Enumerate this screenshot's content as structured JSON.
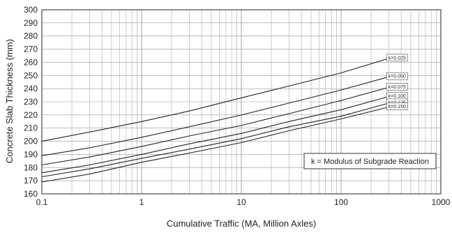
{
  "chart_data": {
    "type": "line",
    "title": "",
    "xlabel": "Cumulative Traffic (MA, Million Axles)",
    "ylabel": "Concrete Slab Thickness (mm)",
    "xscale": "log",
    "xlim": [
      0.1,
      1000
    ],
    "ylim": [
      160,
      300
    ],
    "xticks": [
      0.1,
      1,
      10,
      100,
      1000
    ],
    "xtick_labels": [
      "0.1",
      "1",
      "10",
      "100",
      "1000"
    ],
    "yticks": [
      160,
      170,
      180,
      190,
      200,
      210,
      220,
      230,
      240,
      250,
      260,
      270,
      280,
      290,
      300
    ],
    "ytick_labels": [
      "160",
      "170",
      "180",
      "190",
      "200",
      "210",
      "220",
      "230",
      "240",
      "250",
      "260",
      "270",
      "280",
      "290",
      "300"
    ],
    "grid": true,
    "annotation": "k = Modulus of Subgrade Reaction",
    "series": [
      {
        "name": "k=0.025",
        "x": [
          0.1,
          0.3,
          1,
          3,
          10,
          30,
          100,
          300
        ],
        "values": [
          200,
          207,
          215,
          223,
          233,
          242,
          252,
          263
        ]
      },
      {
        "name": "k=0.050",
        "x": [
          0.1,
          0.3,
          1,
          3,
          10,
          30,
          100,
          300
        ],
        "values": [
          189,
          195,
          203,
          211,
          220,
          229,
          239,
          249
        ]
      },
      {
        "name": "k=0.075",
        "x": [
          0.1,
          0.3,
          1,
          3,
          10,
          30,
          100,
          300
        ],
        "values": [
          182,
          188,
          196,
          204,
          212,
          221,
          231,
          241
        ]
      },
      {
        "name": "k=0.100",
        "x": [
          0.1,
          0.3,
          1,
          3,
          10,
          30,
          100,
          300
        ],
        "values": [
          176,
          182,
          190,
          198,
          206,
          215,
          224,
          234
        ]
      },
      {
        "name": "k=0.125",
        "x": [
          0.1,
          0.3,
          1,
          3,
          10,
          30,
          100,
          300
        ],
        "values": [
          173,
          179,
          187,
          194,
          202,
          211,
          219,
          229
        ]
      },
      {
        "name": "k=0.150",
        "x": [
          0.1,
          0.3,
          1,
          3,
          10,
          30,
          100,
          300
        ],
        "values": [
          169,
          175,
          184,
          191,
          199,
          208,
          217,
          226
        ]
      }
    ],
    "colors": {
      "line": "#222222",
      "grid": "#999999",
      "axis": "#222222"
    }
  }
}
